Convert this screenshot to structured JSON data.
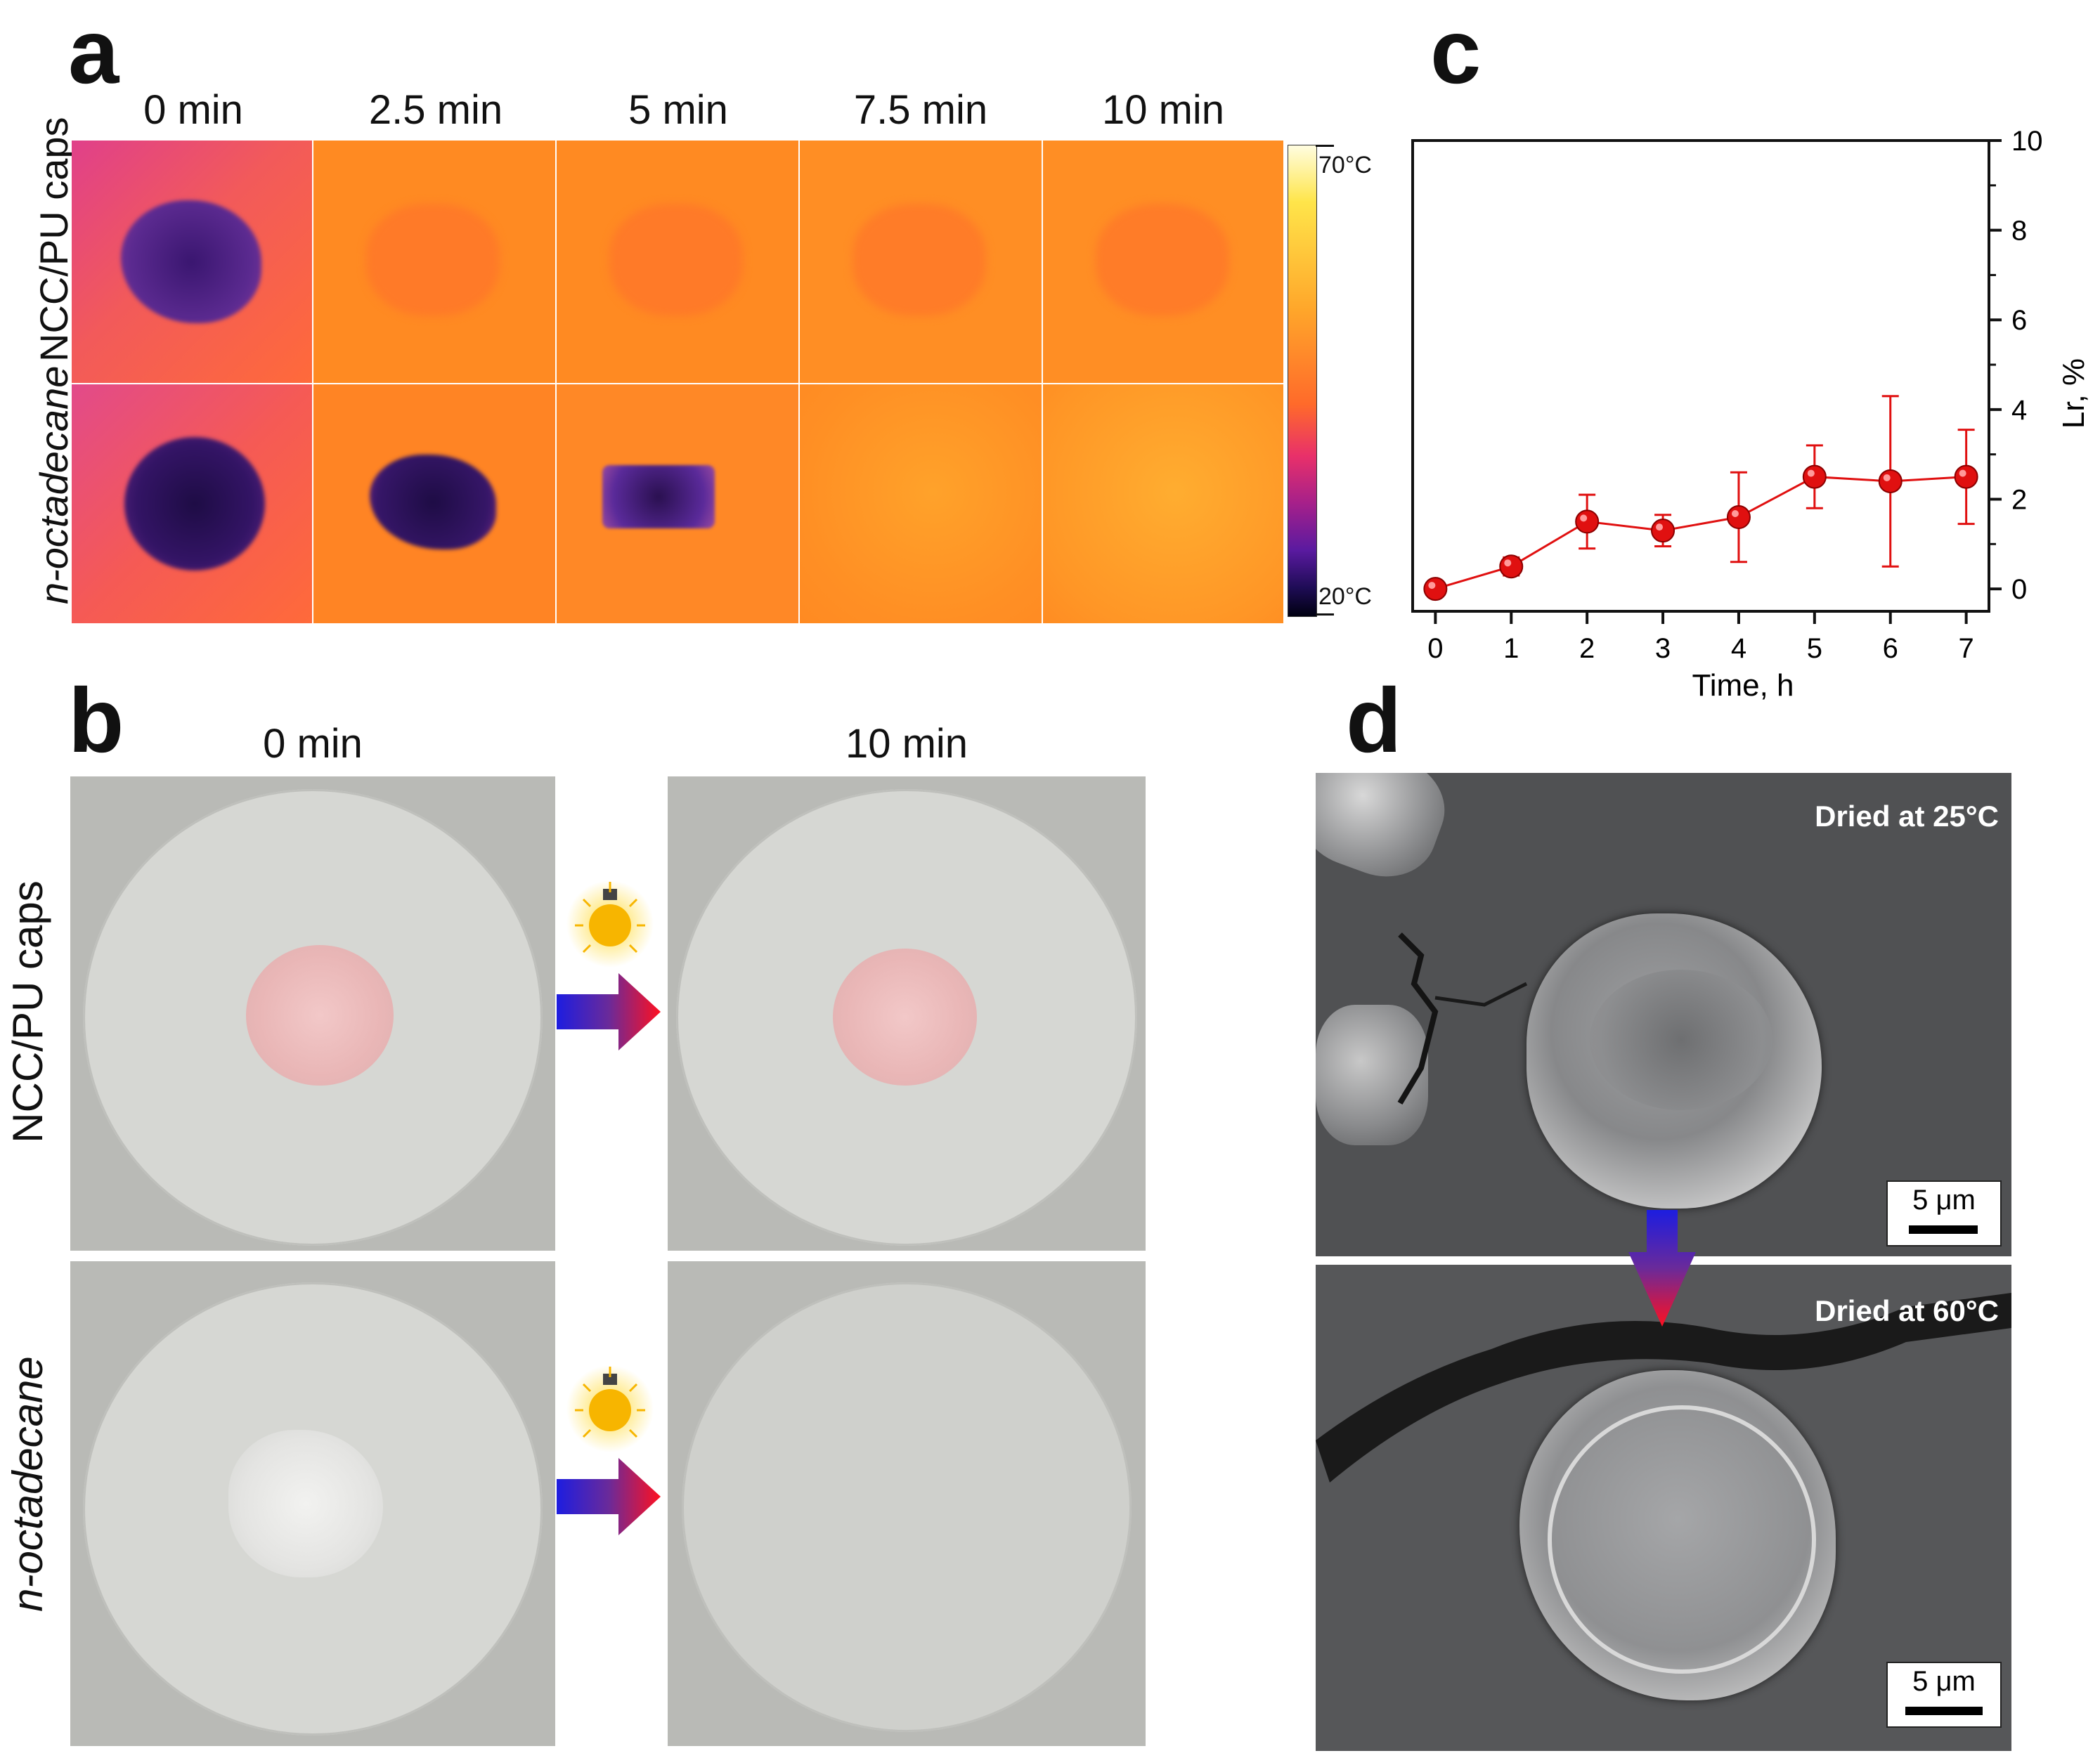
{
  "panels": {
    "a": {
      "letter": "a",
      "columns": [
        "0 min",
        "2.5 min",
        "5 min",
        "7.5 min",
        "10 min"
      ],
      "rows": [
        "NCC/PU caps",
        "n-octadecane"
      ],
      "colorbar": {
        "max_label": "70°C",
        "min_label": "20°C"
      }
    },
    "b": {
      "letter": "b",
      "columns": [
        "0 min",
        "10 min"
      ],
      "rows": [
        "NCC/PU caps",
        "n-octadecane"
      ]
    },
    "c": {
      "letter": "c"
    },
    "d": {
      "letter": "d",
      "top_label": "Dried at 25°C",
      "bottom_label": "Dried at 60°C",
      "scalebar": "5 μm"
    }
  },
  "colors": {
    "thermal_hot": "#ff8c1a",
    "thermal_cold": "#2a1050",
    "marker": "#e01010"
  },
  "chart_data": {
    "type": "scatter",
    "title": "",
    "xlabel": "Time, h",
    "ylabel": "Lr, %",
    "x": [
      0,
      1,
      2,
      3,
      4,
      5,
      6,
      7
    ],
    "xlim": [
      -0.3,
      7.3
    ],
    "ylim": [
      -0.5,
      10
    ],
    "xticks": [
      0,
      1,
      2,
      3,
      4,
      5,
      6,
      7
    ],
    "yticks": [
      0,
      2,
      4,
      6,
      8,
      10
    ],
    "y_axis_side": "right",
    "grid": false,
    "series": [
      {
        "values": [
          0.0,
          0.5,
          1.5,
          1.3,
          1.6,
          2.5,
          2.4,
          2.5
        ],
        "error": [
          0.05,
          0.2,
          0.6,
          0.35,
          1.0,
          0.7,
          1.9,
          1.05
        ],
        "color": "#e01010"
      }
    ]
  }
}
